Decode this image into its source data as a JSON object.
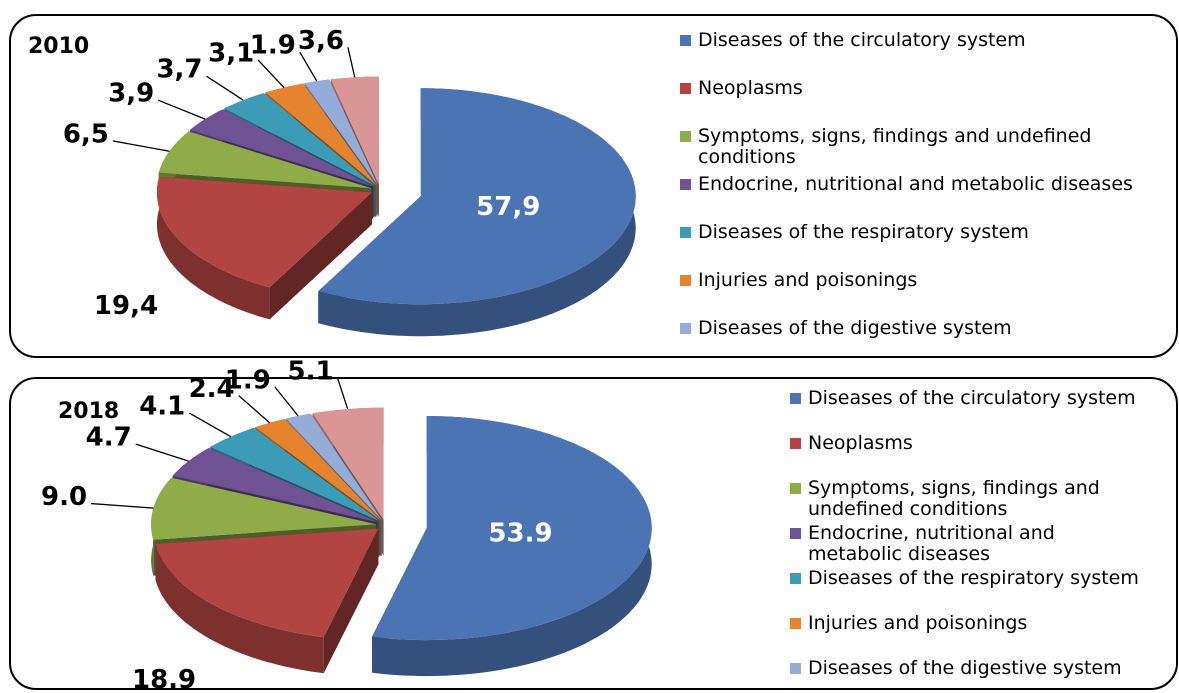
{
  "chart_data": [
    {
      "type": "pie",
      "title": "2010",
      "categories": [
        "Diseases of the circulatory system",
        "Neoplasms",
        "Symptoms, signs, findings and undefined conditions",
        "Endocrine, nutritional and metabolic diseases",
        "Diseases of the respiratory system",
        "Injuries and poisonings",
        "Diseases of the digestive system",
        null
      ],
      "values": [
        57.9,
        19.4,
        6.5,
        3.9,
        3.7,
        3.1,
        1.9,
        3.6
      ],
      "value_labels": [
        "57,9",
        "19,4",
        "6,5",
        "3,9",
        "3,7",
        "3,1",
        "1.9",
        "3,6"
      ],
      "colors": [
        "#4a74b3",
        "#b24542",
        "#8fab4a",
        "#6e5293",
        "#3c9cb8",
        "#e5832f",
        "#94acd7",
        "#d99694"
      ]
    },
    {
      "type": "pie",
      "title": "2018",
      "categories": [
        "Diseases of the circulatory system",
        "Neoplasms",
        "Symptoms, signs, findings and undefined conditions",
        "Endocrine, nutritional and metabolic diseases",
        "Diseases of the respiratory system",
        "Injuries and poisonings",
        "Diseases of the digestive system",
        null
      ],
      "values": [
        53.9,
        18.9,
        9.0,
        4.7,
        4.1,
        2.4,
        1.9,
        5.1
      ],
      "value_labels": [
        "53.9",
        "18.9",
        "9.0",
        "4.7",
        "4.1",
        "2.4",
        "1.9",
        "5.1"
      ],
      "colors": [
        "#4a74b3",
        "#b24542",
        "#8fab4a",
        "#6e5293",
        "#3c9cb8",
        "#e5832f",
        "#94acd7",
        "#d99694"
      ]
    }
  ]
}
